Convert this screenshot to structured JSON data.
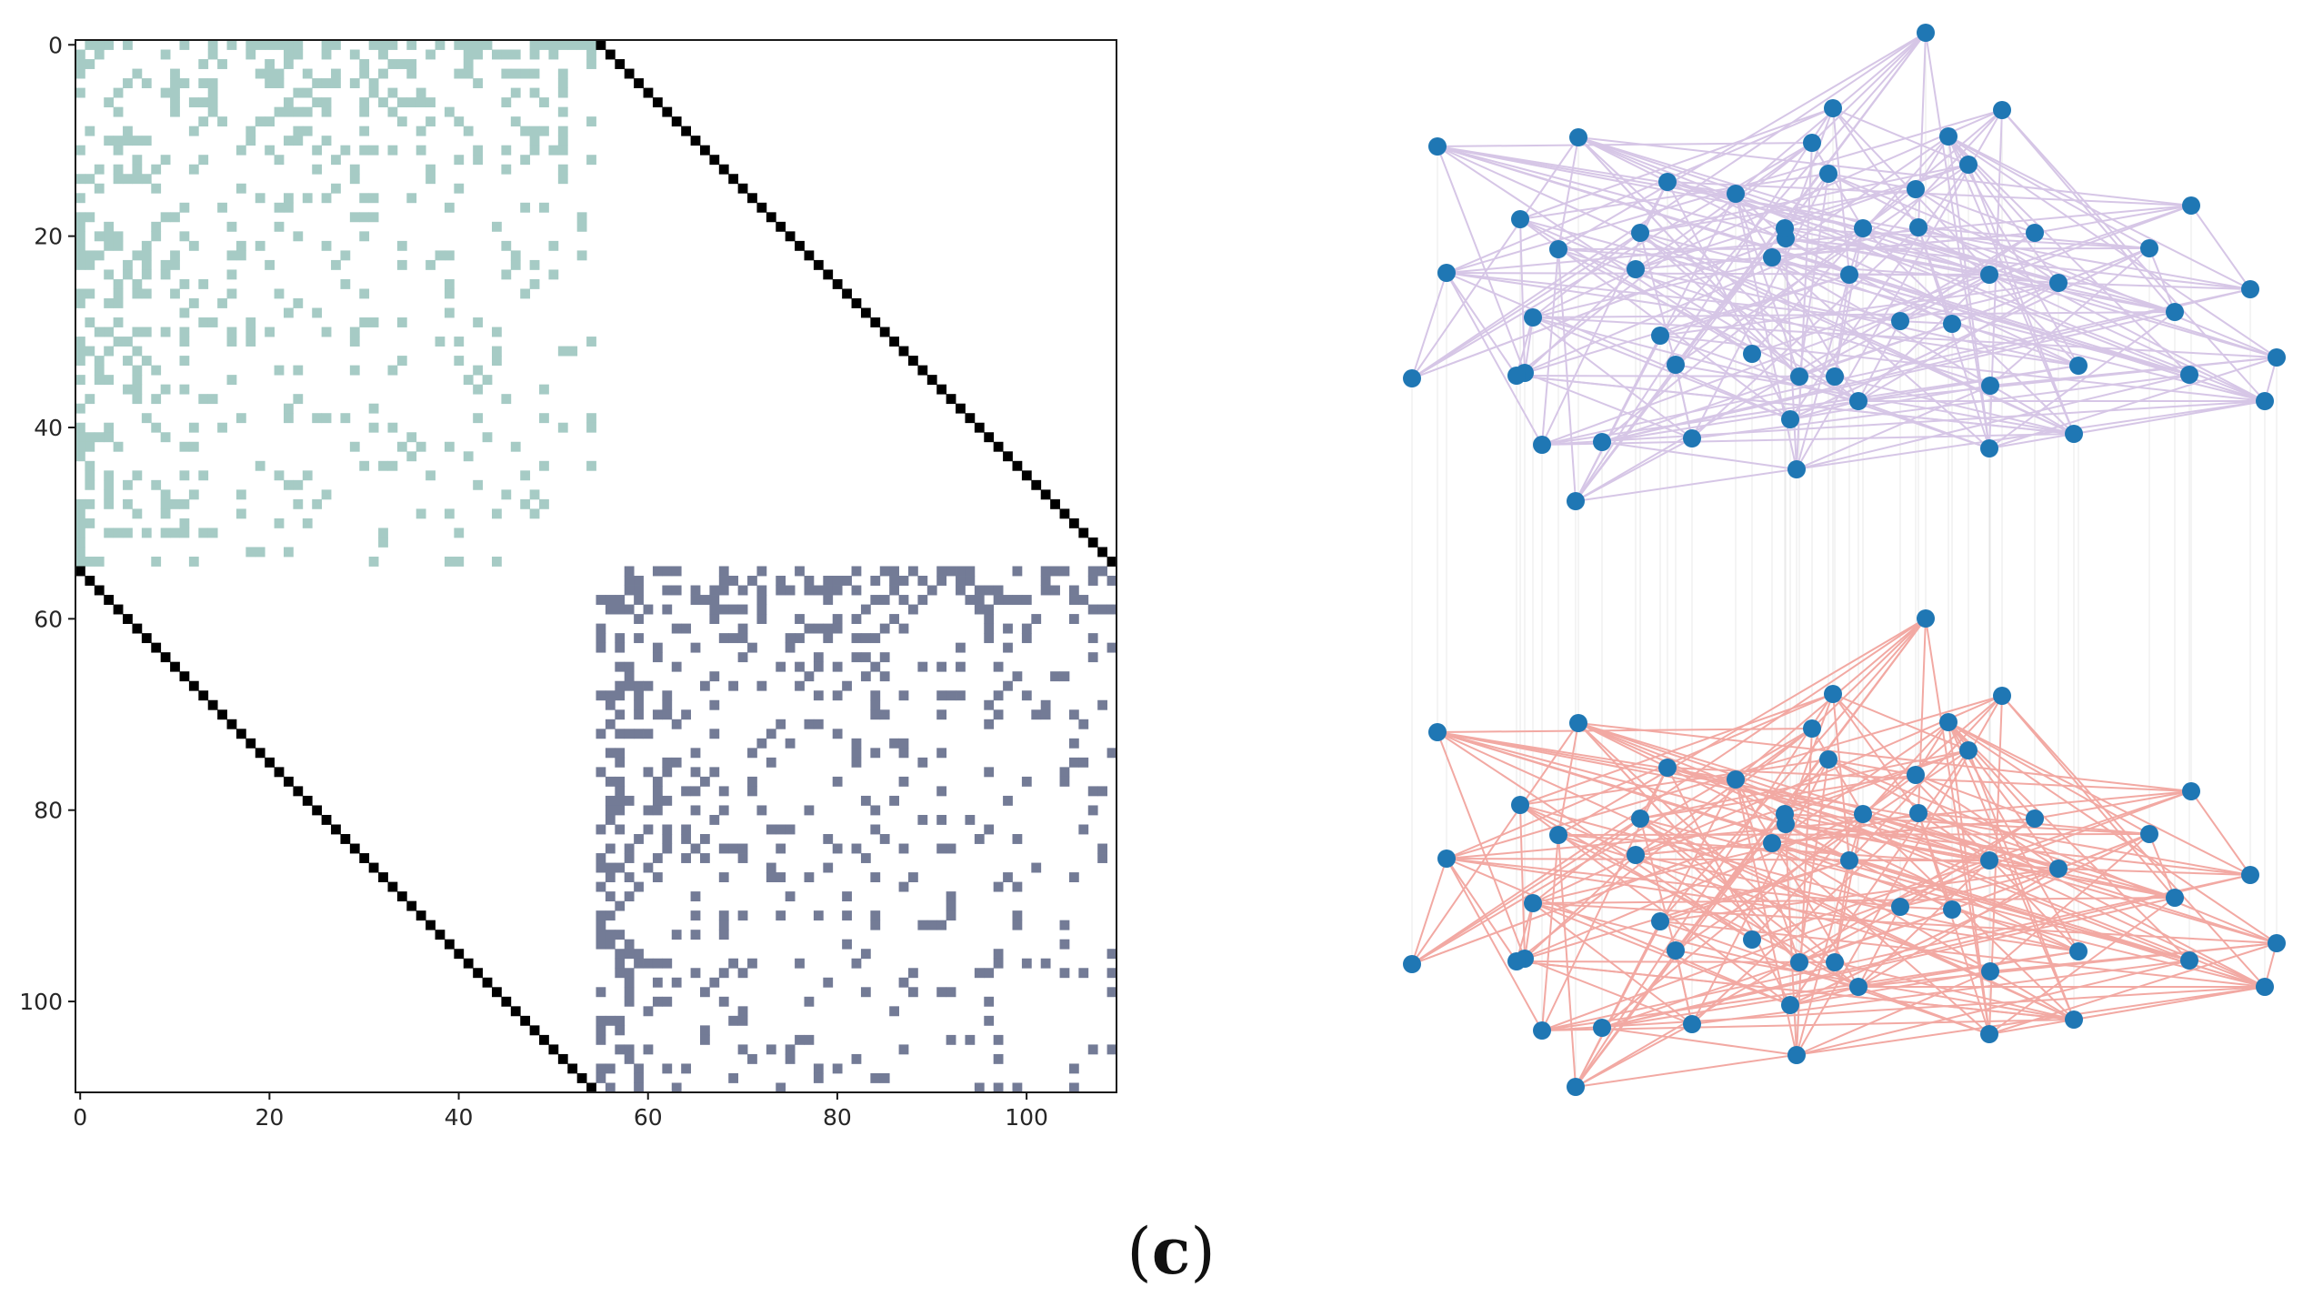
{
  "caption": {
    "open": "(",
    "letter": "c",
    "close": ")"
  },
  "colors": {
    "layer1_blocks": "#a6cbc5",
    "layer2_blocks": "#737b96",
    "coupling_diagonal": "#000000",
    "node": "#1f77b4",
    "layer1_edges": "#d6c6e6",
    "layer2_edges": "#f2a9a3",
    "interlayer_edges": "#d9d9d9"
  },
  "chart_data": [
    {
      "type": "heatmap",
      "description_of_marks": "supra-adjacency matrix of a two-layer multiplex network (55 nodes per layer)",
      "matrix_size": 110,
      "nodes_per_layer": 55,
      "xlim": [
        0,
        110
      ],
      "ylim": [
        110,
        0
      ],
      "xticks": [
        0,
        20,
        40,
        60,
        80,
        100
      ],
      "yticks": [
        0,
        20,
        40,
        60,
        80,
        100
      ],
      "xtick_labels": [
        "0",
        "20",
        "40",
        "60",
        "80",
        "100"
      ],
      "ytick_labels": [
        "0",
        "20",
        "40",
        "60",
        "80",
        "100"
      ],
      "blocks": [
        {
          "layer": 1,
          "rows": [
            0,
            54
          ],
          "cols": [
            0,
            54
          ]
        },
        {
          "layer": 2,
          "rows": [
            55,
            109
          ],
          "cols": [
            55,
            109
          ]
        }
      ],
      "interlayer_diagonals": [
        {
          "row_offset": 0,
          "col_offset": 55
        },
        {
          "row_offset": 55,
          "col_offset": 0
        }
      ],
      "grid": false,
      "title": "",
      "xlabel": "",
      "ylabel": ""
    },
    {
      "type": "network",
      "layers": 2,
      "nodes_per_layer": 55,
      "node_color": "#1f77b4",
      "layer_edge_colors": [
        "#d6c6e6",
        "#f2a9a3"
      ],
      "interlayer_edge_color": "#d9d9d9",
      "title": ""
    }
  ]
}
